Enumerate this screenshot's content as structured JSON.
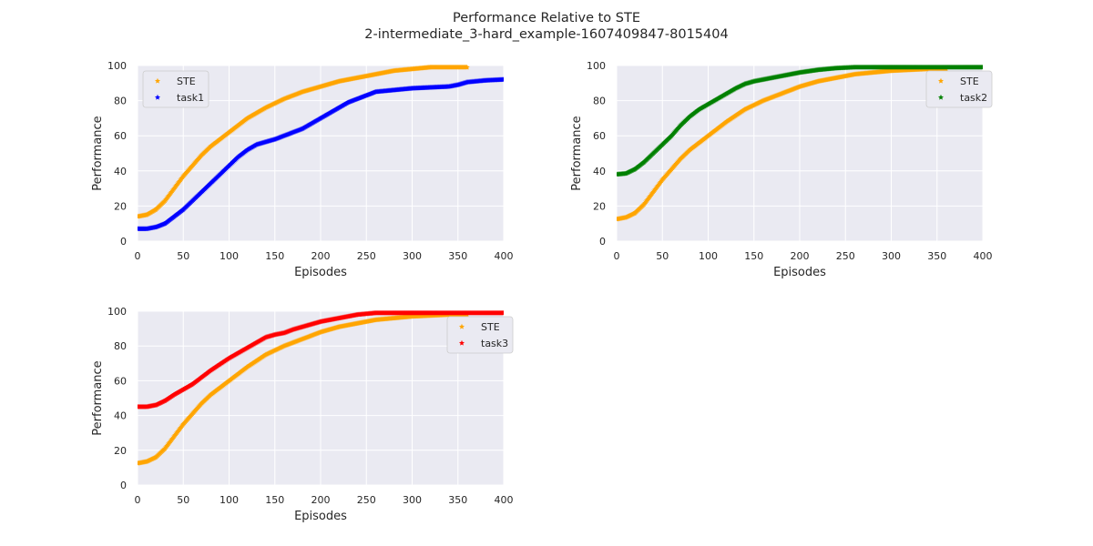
{
  "figure": {
    "title_line1": "Performance Relative to STE",
    "title_line2": "2-intermediate_3-hard_example-1607409847-8015404"
  },
  "colors": {
    "background": "#eaeaf2",
    "grid": "#ffffff",
    "STE": "#ffa500",
    "task1": "#0000ff",
    "task2": "#008000",
    "task3": "#ff0000"
  },
  "chart_data": [
    {
      "type": "scatter",
      "xlabel": "Episodes",
      "ylabel": "Performance",
      "xlim": [
        0,
        400
      ],
      "ylim": [
        0,
        100
      ],
      "xticks": [
        0,
        50,
        100,
        150,
        200,
        250,
        300,
        350,
        400
      ],
      "yticks": [
        0,
        20,
        40,
        60,
        80,
        100
      ],
      "legend_position": "upper-left",
      "series": [
        {
          "name": "STE",
          "color": "#ffa500",
          "marker": "star",
          "x": [
            0,
            10,
            20,
            30,
            40,
            50,
            60,
            70,
            80,
            90,
            100,
            120,
            140,
            160,
            180,
            200,
            220,
            240,
            260,
            280,
            300,
            320,
            340,
            360
          ],
          "y": [
            14,
            15,
            18,
            23,
            30,
            37,
            43,
            49,
            54,
            58,
            62,
            70,
            76,
            81,
            85,
            88,
            91,
            93,
            95,
            97,
            98,
            99,
            99,
            99
          ]
        },
        {
          "name": "task1",
          "color": "#0000ff",
          "marker": "star",
          "x": [
            0,
            10,
            20,
            30,
            40,
            50,
            60,
            70,
            80,
            90,
            100,
            110,
            120,
            130,
            140,
            150,
            160,
            170,
            180,
            190,
            200,
            210,
            220,
            230,
            240,
            250,
            260,
            270,
            280,
            300,
            320,
            340,
            350,
            360,
            380,
            400
          ],
          "y": [
            7,
            7,
            8,
            10,
            14,
            18,
            23,
            28,
            33,
            38,
            43,
            48,
            52,
            55,
            56.5,
            58,
            60,
            62,
            64,
            67,
            70,
            73,
            76,
            79,
            81,
            83,
            85,
            85.5,
            86,
            87,
            87.5,
            88,
            89,
            90.5,
            91.5,
            92
          ]
        }
      ]
    },
    {
      "type": "scatter",
      "xlabel": "Episodes",
      "ylabel": "Performance",
      "xlim": [
        0,
        400
      ],
      "ylim": [
        0,
        100
      ],
      "xticks": [
        0,
        50,
        100,
        150,
        200,
        250,
        300,
        350,
        400
      ],
      "yticks": [
        0,
        20,
        40,
        60,
        80,
        100
      ],
      "legend_position": "upper-right",
      "series": [
        {
          "name": "STE",
          "color": "#ffa500",
          "marker": "star",
          "x": [
            0,
            10,
            20,
            30,
            40,
            50,
            60,
            70,
            80,
            90,
            100,
            120,
            140,
            160,
            180,
            200,
            220,
            240,
            260,
            280,
            300,
            320,
            340,
            360
          ],
          "y": [
            12.5,
            13.5,
            16,
            21,
            28,
            35,
            41,
            47,
            52,
            56,
            60,
            68,
            75,
            80,
            84,
            88,
            91,
            93,
            95,
            96,
            97,
            97.5,
            98,
            98
          ]
        },
        {
          "name": "task2",
          "color": "#008000",
          "marker": "star",
          "x": [
            0,
            10,
            20,
            30,
            40,
            50,
            60,
            70,
            80,
            90,
            100,
            110,
            120,
            130,
            140,
            150,
            160,
            180,
            200,
            220,
            240,
            260,
            300,
            350,
            400
          ],
          "y": [
            38,
            38.5,
            41,
            45,
            50,
            55,
            60,
            66,
            71,
            75,
            78,
            81,
            84,
            87,
            89.5,
            91,
            92,
            94,
            96,
            97.5,
            98.5,
            99,
            99,
            99,
            99
          ]
        }
      ]
    },
    {
      "type": "scatter",
      "xlabel": "Episodes",
      "ylabel": "Performance",
      "xlim": [
        0,
        400
      ],
      "ylim": [
        0,
        100
      ],
      "xticks": [
        0,
        50,
        100,
        150,
        200,
        250,
        300,
        350,
        400
      ],
      "yticks": [
        0,
        20,
        40,
        60,
        80,
        100
      ],
      "legend_position": "upper-right",
      "series": [
        {
          "name": "STE",
          "color": "#ffa500",
          "marker": "star",
          "x": [
            0,
            10,
            20,
            30,
            40,
            50,
            60,
            70,
            80,
            90,
            100,
            120,
            140,
            160,
            180,
            200,
            220,
            240,
            260,
            280,
            300,
            320,
            340,
            360
          ],
          "y": [
            12.5,
            13.5,
            16,
            21,
            28,
            35,
            41,
            47,
            52,
            56,
            60,
            68,
            75,
            80,
            84,
            88,
            91,
            93,
            95,
            96,
            97,
            97.5,
            98,
            98
          ]
        },
        {
          "name": "task3",
          "color": "#ff0000",
          "marker": "star",
          "x": [
            0,
            10,
            20,
            30,
            40,
            50,
            60,
            70,
            80,
            90,
            100,
            110,
            120,
            130,
            140,
            150,
            160,
            170,
            180,
            190,
            200,
            220,
            240,
            260,
            300,
            350,
            400
          ],
          "y": [
            45,
            45,
            46,
            48.5,
            52,
            55,
            58,
            62,
            66,
            69.5,
            73,
            76,
            79,
            82,
            85,
            86.5,
            87.5,
            89.5,
            91,
            92.5,
            94,
            96,
            98,
            99,
            99,
            99,
            99
          ]
        }
      ]
    }
  ]
}
